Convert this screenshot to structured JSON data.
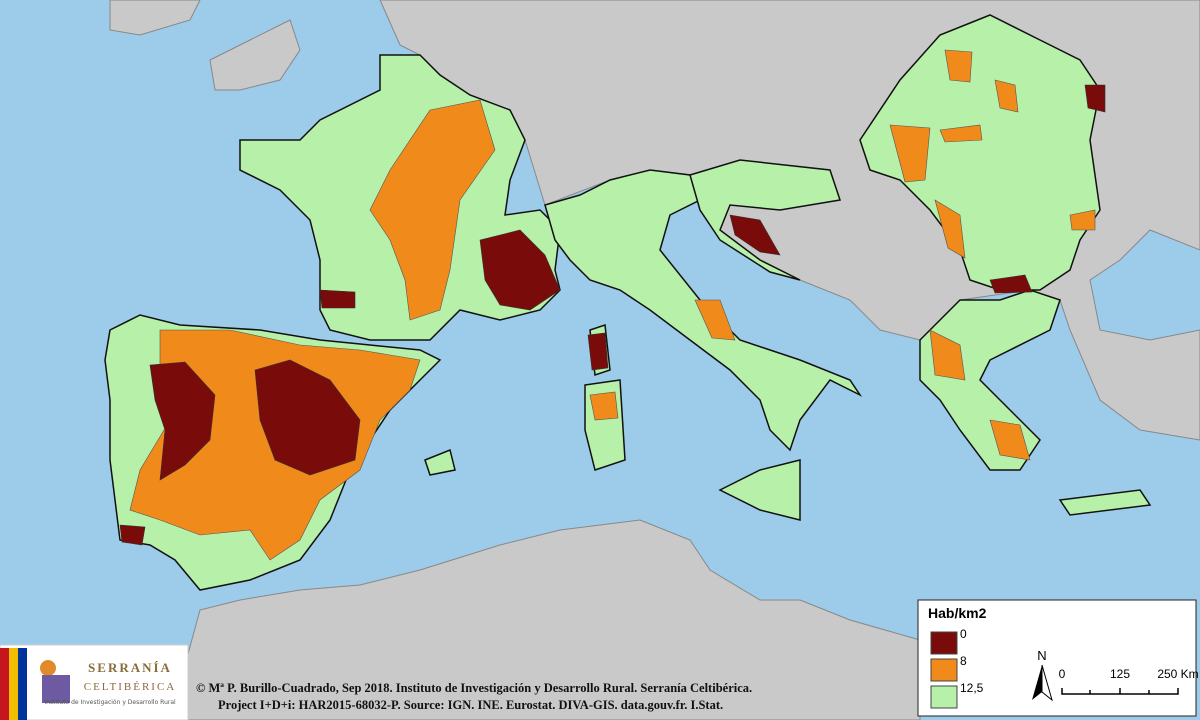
{
  "legend": {
    "title": "Hab/km2",
    "items": [
      {
        "label": "0",
        "color": "#7a0b0b"
      },
      {
        "label": "8",
        "color": "#f08a1a"
      },
      {
        "label": "12,5",
        "color": "#b6f0a9"
      }
    ]
  },
  "north": "N",
  "scale": {
    "labels": [
      "0",
      "125",
      "250 Km"
    ]
  },
  "logo": {
    "name": "SERRANÍA",
    "name2": "CELTIBÉRICA",
    "subtitle": "Instituto de Investigación y Desarrollo Rural"
  },
  "credits": [
    "Mª P. Burillo-Cuadrado, Sep 2018. Instituto de Investigación y Desarrollo Rural. Serranía Celtibérica.",
    "Project I+D+i: HAR2015-68032-P. Source: IGN. INE. Eurostat. DIVA-GIS. data.gouv.fr. I.Stat."
  ]
}
